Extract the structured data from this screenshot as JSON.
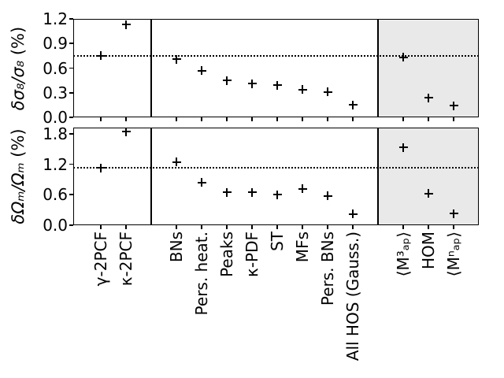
{
  "figure": {
    "background": "#ffffff",
    "shade_color": "#e9e9e9",
    "line_color": "#000000",
    "marker_symbol": "+"
  },
  "chart_data": {
    "type": "scatter",
    "title": "",
    "xlabel": "",
    "categories": [
      "γ-2PCF",
      "κ-2PCF",
      "BNs",
      "Pers. heat.",
      "Peaks",
      "κ-PDF",
      "ST",
      "MFs",
      "Pers. BNs",
      "All HOS (Gauss.)",
      "⟨M³ₐₚ⟩",
      "HOM",
      "⟨Mⁿₐₚ⟩"
    ],
    "category_positions": [
      0,
      1,
      3,
      4,
      5,
      6,
      7,
      8,
      9,
      10,
      12,
      13,
      14
    ],
    "xlim": [
      -1.1,
      15
    ],
    "group_dividers": [
      2,
      11
    ],
    "shaded_region": [
      11,
      15
    ],
    "grid": "off",
    "legend": "none",
    "panels": [
      {
        "name": "sigma8-panel",
        "ylabel": "δσ₈/σ₈ (%)",
        "ylabel_math": "δσ₈/σ₈",
        "ylabel_unit": " (%)",
        "ylim": [
          0,
          1.2
        ],
        "ytick_labels": [
          "0.0",
          "0.3",
          "0.6",
          "0.9",
          "1.2"
        ],
        "ytick_values": [
          0,
          0.3,
          0.6,
          0.9,
          1.2
        ],
        "reference_line": 0.75,
        "reference_line_style": "dotted",
        "values": [
          0.75,
          1.13,
          0.71,
          0.57,
          0.45,
          0.41,
          0.39,
          0.34,
          0.31,
          0.15,
          0.73,
          0.24,
          0.14
        ]
      },
      {
        "name": "omega-m-panel",
        "ylabel": "δΩₘ/Ωₘ (%)",
        "ylabel_math": "δΩₘ/Ωₘ",
        "ylabel_unit": " (%)",
        "ylim": [
          0,
          1.92
        ],
        "ytick_labels": [
          "0.0",
          "0.6",
          "1.2",
          "1.8"
        ],
        "ytick_values": [
          0,
          0.6,
          1.2,
          1.8
        ],
        "reference_line": 1.13,
        "reference_line_style": "dotted",
        "values": [
          1.13,
          1.84,
          1.24,
          0.84,
          0.65,
          0.65,
          0.6,
          0.72,
          0.58,
          0.22,
          1.53,
          0.62,
          0.23
        ]
      }
    ]
  }
}
